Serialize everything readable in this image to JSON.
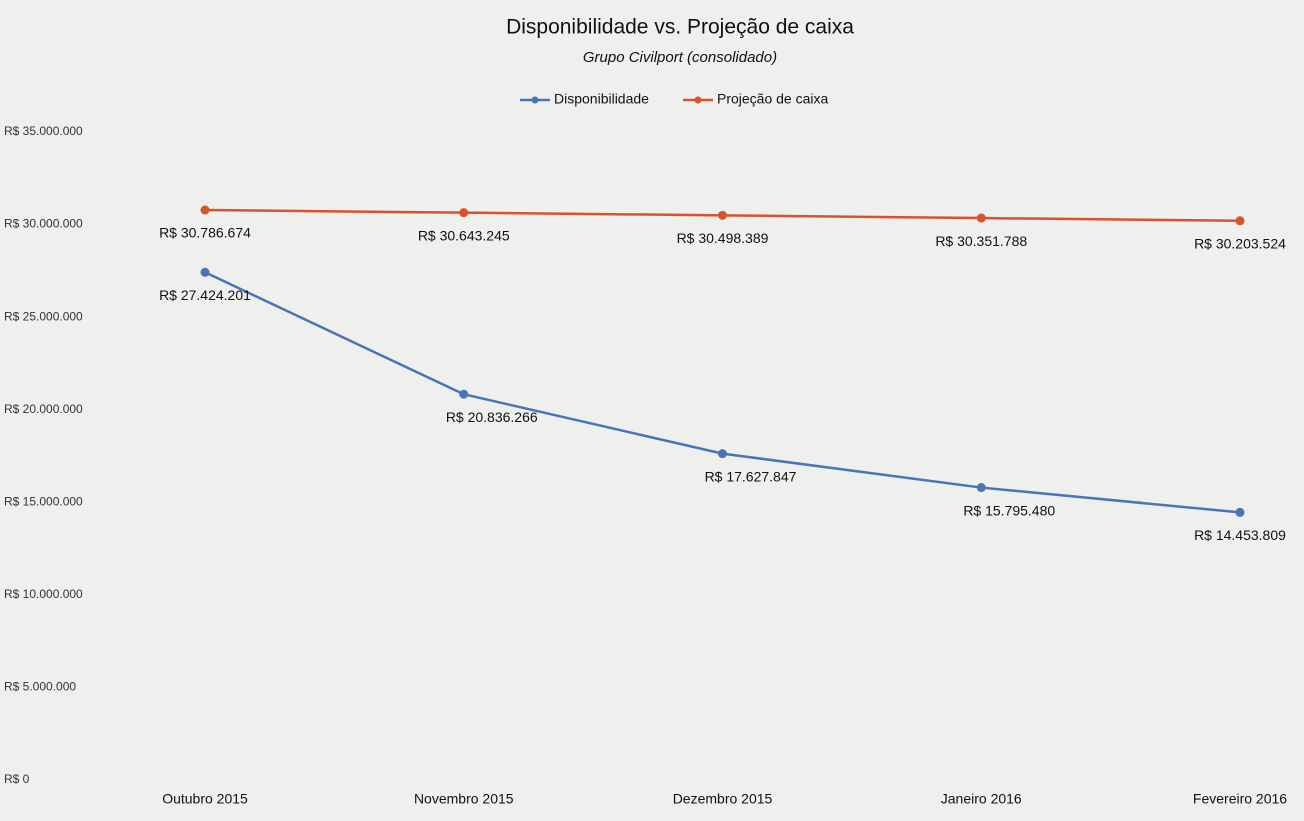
{
  "chart_data": {
    "type": "line",
    "title": "Disponibilidade vs. Projeção de caixa",
    "subtitle": "Grupo Civilport (consolidado)",
    "categories": [
      "Outubro 2015",
      "Novembro 2015",
      "Dezembro 2015",
      "Janeiro 2016",
      "Fevereiro 2016"
    ],
    "series": [
      {
        "name": "Disponibilidade",
        "color": "#4a74b8",
        "values": [
          27424201,
          20836266,
          17627847,
          15795480,
          14453809
        ],
        "value_labels": [
          "R$ 27.424.201",
          "R$ 20.836.266",
          "R$ 17.627.847",
          "R$ 15.795.480",
          "R$ 14.453.809"
        ]
      },
      {
        "name": "Projeção de caixa",
        "color": "#d9522e",
        "values": [
          30786674,
          30643245,
          30498389,
          30351788,
          30203524
        ],
        "value_labels": [
          "R$ 30.786.674",
          "R$ 30.643.245",
          "R$ 30.498.389",
          "R$ 30.351.788",
          "R$ 30.203.524"
        ]
      }
    ],
    "ylim": [
      0,
      35000000
    ],
    "yticks": [
      {
        "value": 0,
        "label": "R$ 0"
      },
      {
        "value": 5000000,
        "label": "R$ 5.000.000"
      },
      {
        "value": 10000000,
        "label": "R$ 10.000.000"
      },
      {
        "value": 15000000,
        "label": "R$ 15.000.000"
      },
      {
        "value": 20000000,
        "label": "R$ 20.000.000"
      },
      {
        "value": 25000000,
        "label": "R$ 25.000.000"
      },
      {
        "value": 30000000,
        "label": "R$ 30.000.000"
      },
      {
        "value": 35000000,
        "label": "R$ 35.000.000"
      }
    ],
    "grid": false,
    "legend": "top"
  }
}
